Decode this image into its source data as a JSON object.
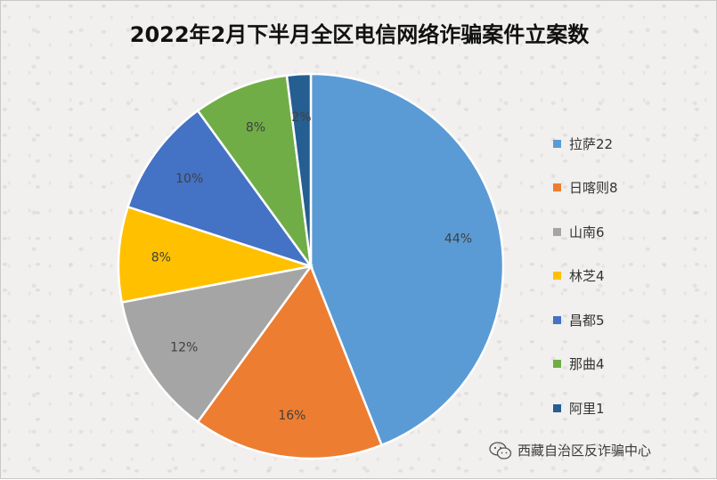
{
  "title": "2022年2月下半月全区电信网络诈骗案件立案数",
  "chart_data": {
    "type": "pie",
    "title": "2022年2月下半月全区电信网络诈骗案件立案数",
    "slices": [
      {
        "label": "拉萨22",
        "value": 22,
        "percent_label": "44%",
        "color": "#5b9bd5"
      },
      {
        "label": "日喀则8",
        "value": 8,
        "percent_label": "16%",
        "color": "#ed7d31"
      },
      {
        "label": "山南6",
        "value": 6,
        "percent_label": "12%",
        "color": "#a5a5a5"
      },
      {
        "label": "林芝4",
        "value": 4,
        "percent_label": "8%",
        "color": "#ffc000"
      },
      {
        "label": "昌都5",
        "value": 5,
        "percent_label": "10%",
        "color": "#4472c4"
      },
      {
        "label": "那曲4",
        "value": 4,
        "percent_label": "8%",
        "color": "#70ad47"
      },
      {
        "label": "阿里1",
        "value": 1,
        "percent_label": "2%",
        "color": "#255e91"
      }
    ],
    "legend_position": "right",
    "slice_border_color": "#ffffff"
  },
  "watermark": {
    "icon": "wechat-icon",
    "text": "西藏自治区反诈骗中心"
  }
}
